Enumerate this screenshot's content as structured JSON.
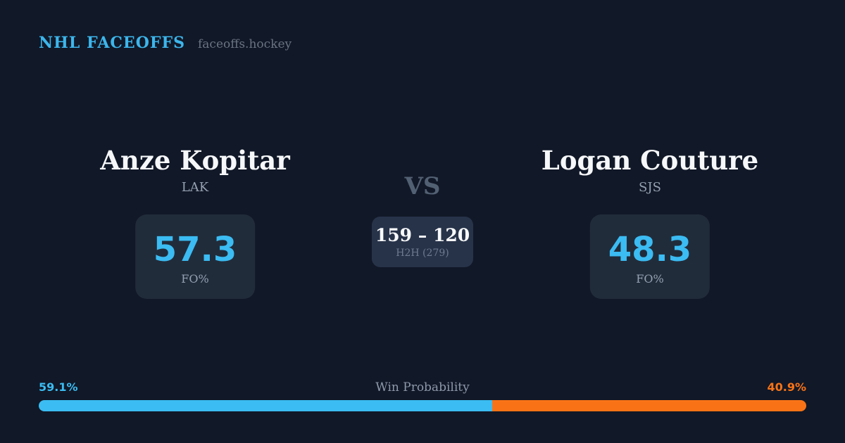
{
  "brand": {
    "title": "NHL FACEOFFS",
    "domain": "faceoffs.hockey"
  },
  "players": {
    "left": {
      "name": "Anze Kopitar",
      "team": "LAK",
      "stat_value": "57.3",
      "stat_label": "FO%"
    },
    "right": {
      "name": "Logan Couture",
      "team": "SJS",
      "stat_value": "48.3",
      "stat_label": "FO%"
    }
  },
  "versus": {
    "label": "VS",
    "h2h_score": "159 – 120",
    "h2h_label": "H2H (279)"
  },
  "win_probability": {
    "label": "Win Probability",
    "left_label": "59.1%",
    "right_label": "40.9%",
    "left_pct": 59.1,
    "right_pct": 40.9
  },
  "colors": {
    "background": "#111827",
    "card": "#212c3b",
    "h2h_card": "#273349",
    "accent_blue": "#3bbcf2",
    "accent_orange": "#f97316"
  }
}
